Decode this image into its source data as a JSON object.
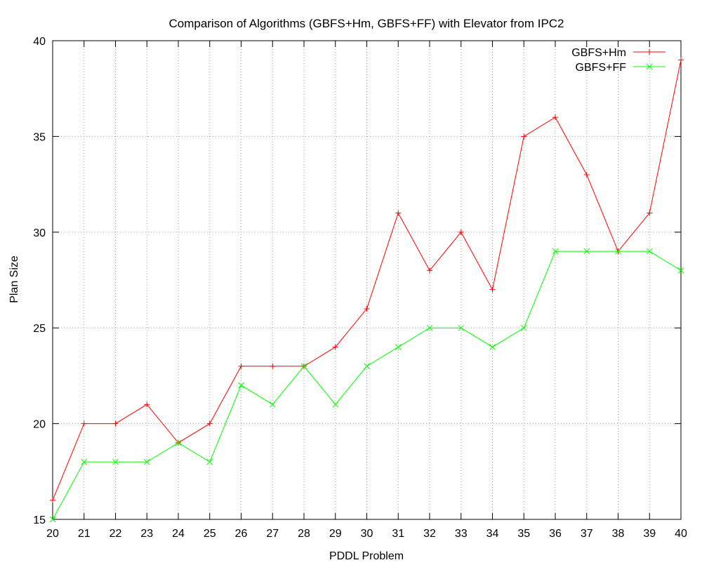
{
  "chart_data": {
    "type": "line",
    "title": "Comparison of Algorithms (GBFS+Hm, GBFS+FF) with Elevator from IPC2",
    "xlabel": "PDDL Problem",
    "ylabel": "Plan Size",
    "x": [
      20,
      21,
      22,
      23,
      24,
      25,
      26,
      27,
      28,
      29,
      30,
      31,
      32,
      33,
      34,
      35,
      36,
      37,
      38,
      39,
      40
    ],
    "xlim": [
      20,
      40
    ],
    "ylim": [
      15,
      40
    ],
    "xticks": [
      "20",
      "21",
      "22",
      "23",
      "24",
      "25",
      "26",
      "27",
      "28",
      "29",
      "30",
      "31",
      "32",
      "33",
      "34",
      "35",
      "36",
      "37",
      "38",
      "39",
      "40"
    ],
    "yticks": [
      "15",
      "20",
      "25",
      "30",
      "35",
      "40"
    ],
    "grid": true,
    "legend_position": "top-right",
    "series": [
      {
        "name": "GBFS+Hm",
        "color": "#ff0000",
        "marker": "plus",
        "values": [
          16,
          20,
          20,
          21,
          19,
          20,
          23,
          23,
          23,
          24,
          26,
          31,
          28,
          30,
          27,
          35,
          36,
          33,
          29,
          31,
          39
        ]
      },
      {
        "name": "GBFS+FF",
        "color": "#00ff00",
        "marker": "cross",
        "values": [
          15,
          18,
          18,
          18,
          19,
          18,
          22,
          21,
          23,
          21,
          23,
          24,
          25,
          25,
          24,
          25,
          29,
          29,
          29,
          29,
          28
        ]
      }
    ]
  }
}
